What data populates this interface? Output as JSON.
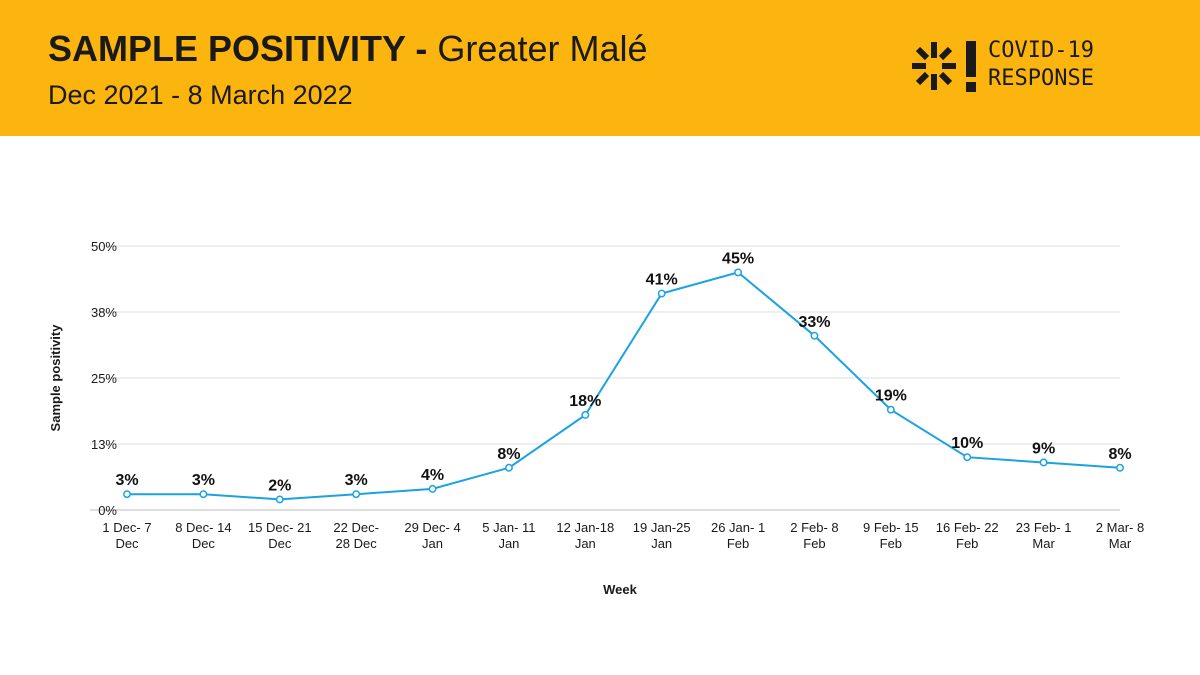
{
  "header": {
    "title_bold": "SAMPLE POSITIVITY -",
    "title_rest": "Greater Malé",
    "subtitle": "Dec 2021 - 8 March 2022",
    "logo_line1": "COVID-19",
    "logo_line2": "RESPONSE",
    "banner_color": "#fcb50f"
  },
  "chart_data": {
    "type": "line",
    "title": "",
    "xlabel": "Week",
    "ylabel": "Sample positivity",
    "ylim": [
      0,
      50
    ],
    "yticks": [
      "0%",
      "13%",
      "25%",
      "38%",
      "50%"
    ],
    "grid": true,
    "line_color": "#1aa3e0",
    "categories": [
      [
        "1 Dec- 7",
        "Dec"
      ],
      [
        "8 Dec- 14",
        "Dec"
      ],
      [
        "15 Dec- 21",
        "Dec"
      ],
      [
        "22 Dec-",
        "28 Dec"
      ],
      [
        "29 Dec- 4",
        "Jan"
      ],
      [
        "5 Jan- 11",
        "Jan"
      ],
      [
        "12 Jan-18",
        "Jan"
      ],
      [
        "19 Jan-25",
        "Jan"
      ],
      [
        "26 Jan- 1",
        "Feb"
      ],
      [
        "2 Feb- 8",
        "Feb"
      ],
      [
        "9 Feb- 15",
        "Feb"
      ],
      [
        "16 Feb- 22",
        "Feb"
      ],
      [
        "23 Feb- 1",
        "Mar"
      ],
      [
        "2 Mar- 8",
        "Mar"
      ]
    ],
    "values": [
      3,
      3,
      2,
      3,
      4,
      8,
      18,
      41,
      45,
      33,
      19,
      10,
      9,
      8
    ],
    "data_labels": [
      "3%",
      "3%",
      "2%",
      "3%",
      "4%",
      "8%",
      "18%",
      "41%",
      "45%",
      "33%",
      "19%",
      "10%",
      "9%",
      "8%"
    ]
  }
}
